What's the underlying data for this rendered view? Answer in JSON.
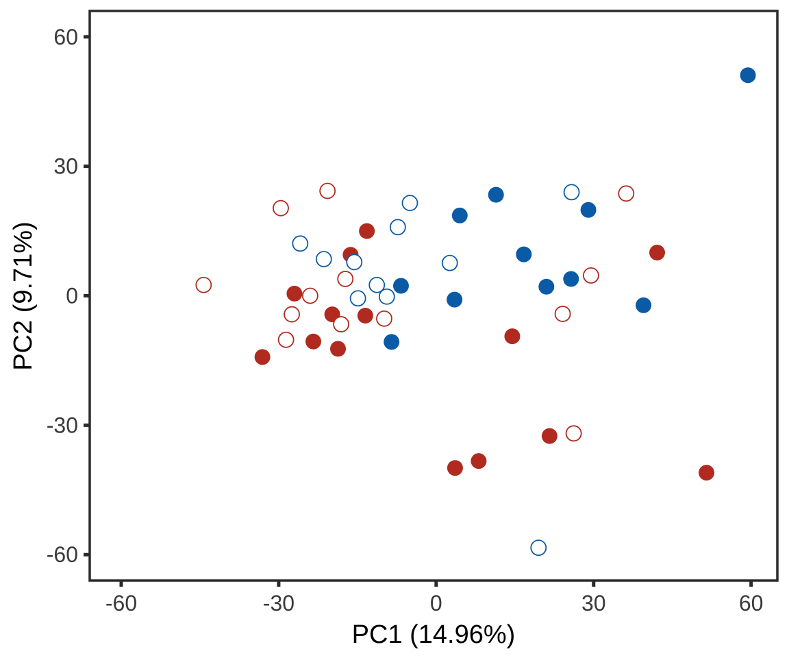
{
  "chart_data": {
    "type": "scatter",
    "title": "",
    "xlabel": "PC1 (14.96%)",
    "ylabel": "PC2 (9.71%)",
    "xlim": [
      -66,
      65
    ],
    "ylim": [
      -66,
      66
    ],
    "xticks": [
      -60,
      -30,
      0,
      30,
      60
    ],
    "yticks": [
      -60,
      -30,
      0,
      30,
      60
    ],
    "grid": false,
    "legend": "none",
    "colors": {
      "red": "#b02a20",
      "blue": "#0b5aa6"
    },
    "series": [
      {
        "name": "red-filled",
        "color": "red",
        "filled": true,
        "points": [
          [
            -13.2,
            15.0
          ],
          [
            -16.3,
            9.5
          ],
          [
            -27.0,
            0.5
          ],
          [
            -19.8,
            -4.3
          ],
          [
            -13.5,
            -4.6
          ],
          [
            -23.4,
            -10.6
          ],
          [
            -18.7,
            -12.3
          ],
          [
            -33.1,
            -14.2
          ],
          [
            14.5,
            -9.4
          ],
          [
            42.1,
            10.0
          ],
          [
            21.6,
            -32.5
          ],
          [
            8.1,
            -38.3
          ],
          [
            3.6,
            -39.9
          ],
          [
            51.5,
            -41.0
          ]
        ]
      },
      {
        "name": "red-open",
        "color": "red",
        "filled": false,
        "points": [
          [
            -20.7,
            24.3
          ],
          [
            -29.6,
            20.3
          ],
          [
            -44.3,
            2.5
          ],
          [
            -17.3,
            3.9
          ],
          [
            -24.0,
            0.0
          ],
          [
            -27.5,
            -4.3
          ],
          [
            -18.1,
            -6.6
          ],
          [
            -28.6,
            -10.2
          ],
          [
            -9.9,
            -5.3
          ],
          [
            36.2,
            23.7
          ],
          [
            29.5,
            4.7
          ],
          [
            24.1,
            -4.2
          ],
          [
            26.2,
            -31.9
          ]
        ]
      },
      {
        "name": "blue-filled",
        "color": "blue",
        "filled": true,
        "points": [
          [
            4.5,
            18.6
          ],
          [
            11.4,
            23.4
          ],
          [
            16.7,
            9.6
          ],
          [
            29.0,
            19.9
          ],
          [
            25.7,
            3.9
          ],
          [
            21.0,
            2.1
          ],
          [
            39.5,
            -2.2
          ],
          [
            3.5,
            -0.9
          ],
          [
            -6.7,
            2.3
          ],
          [
            -8.5,
            -10.7
          ],
          [
            59.4,
            51.1
          ]
        ]
      },
      {
        "name": "blue-open",
        "color": "blue",
        "filled": false,
        "points": [
          [
            -5.0,
            21.5
          ],
          [
            -7.3,
            15.9
          ],
          [
            -25.9,
            12.1
          ],
          [
            -21.4,
            8.5
          ],
          [
            -15.6,
            7.8
          ],
          [
            -11.3,
            2.5
          ],
          [
            -14.9,
            -0.6
          ],
          [
            -9.4,
            -0.2
          ],
          [
            2.6,
            7.6
          ],
          [
            25.8,
            24.0
          ],
          [
            19.5,
            -58.4
          ]
        ]
      }
    ]
  }
}
